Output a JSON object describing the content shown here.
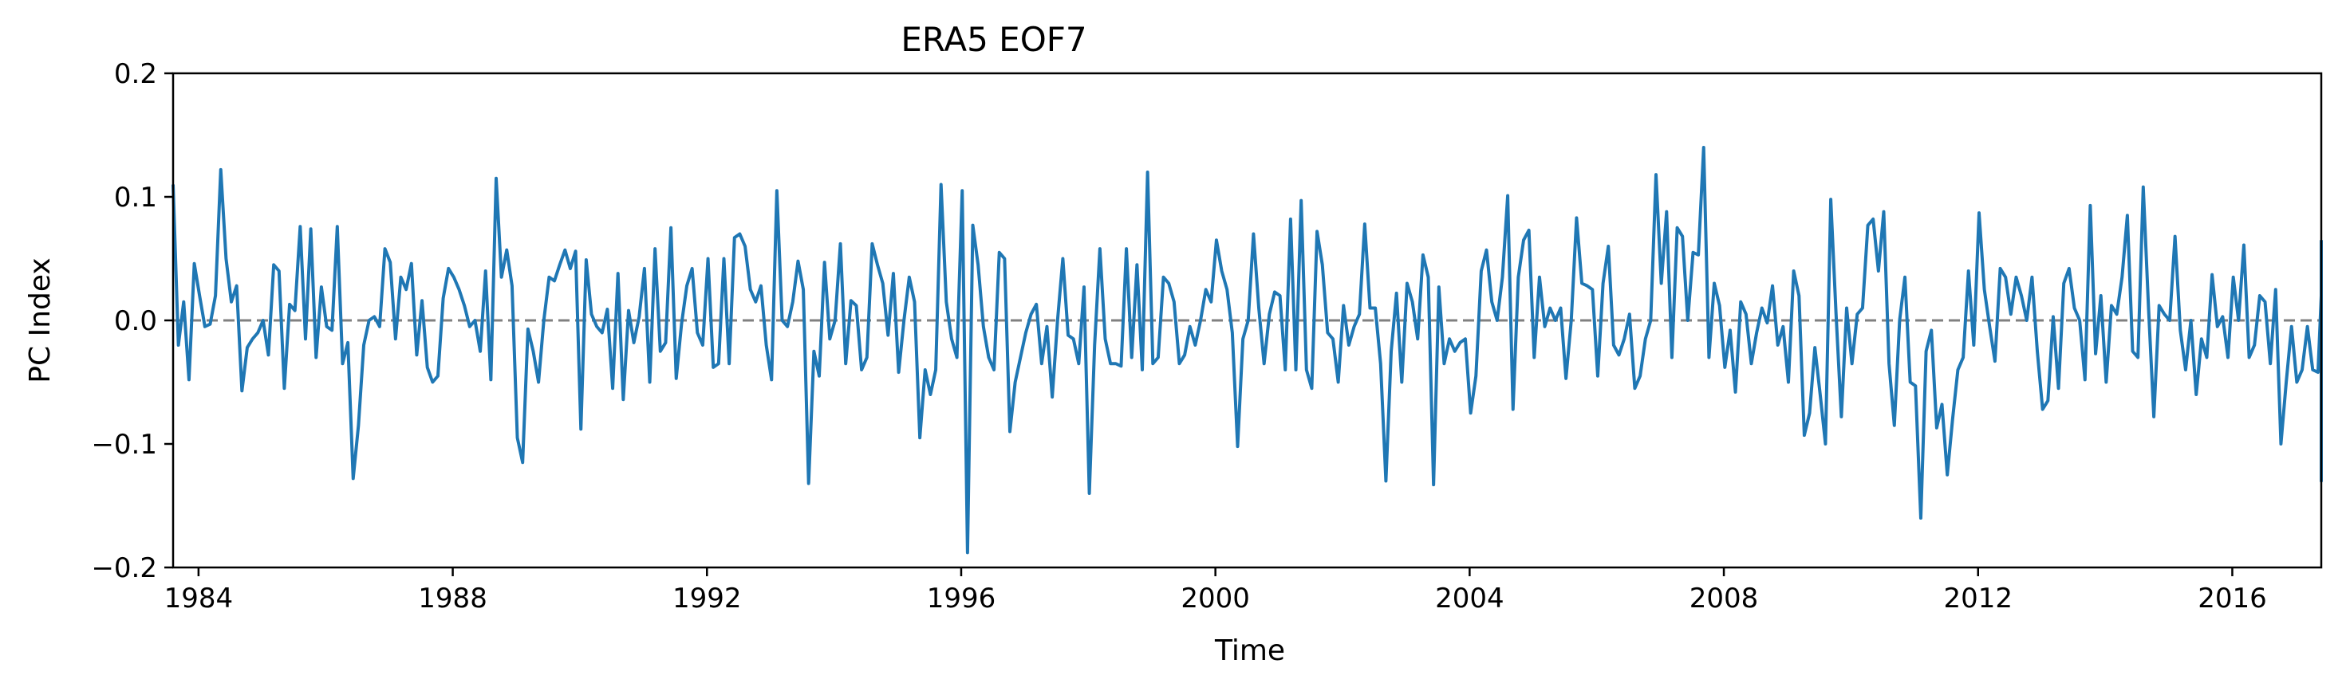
{
  "chart_data": {
    "type": "line",
    "title": "ERA5  EOF7",
    "xlabel": "Time",
    "ylabel": "PC Index",
    "xlim": [
      1983.6,
      2017.4
    ],
    "ylim": [
      -0.2,
      0.2
    ],
    "x_ticks": [
      1984,
      1988,
      1992,
      1996,
      2000,
      2004,
      2008,
      2012,
      2016
    ],
    "x_tick_labels": [
      "1984",
      "1988",
      "1992",
      "1996",
      "2000",
      "2004",
      "2008",
      "2012",
      "2016"
    ],
    "y_ticks": [
      -0.2,
      -0.1,
      0.0,
      0.1,
      0.2
    ],
    "y_tick_labels": [
      "−0.2",
      "−0.1",
      "0.0",
      "0.1",
      "0.2"
    ],
    "grid": false,
    "zero_line": {
      "value": 0.0,
      "style": "dashed",
      "color": "#808080"
    },
    "line_color": "#1f77b4",
    "series": [
      {
        "x_start": 1983.6,
        "x_step": 0.08333,
        "values": [
          0.11,
          -0.02,
          0.015,
          -0.048,
          0.046,
          0.02,
          -0.005,
          -0.003,
          0.02,
          0.122,
          0.05,
          0.015,
          0.028,
          -0.057,
          -0.022,
          -0.015,
          -0.01,
          0.0,
          -0.028,
          0.045,
          0.04,
          -0.055,
          0.013,
          0.008,
          0.076,
          -0.015,
          0.074,
          -0.03,
          0.027,
          -0.005,
          -0.008,
          0.076,
          -0.035,
          -0.018,
          -0.128,
          -0.085,
          -0.02,
          0.0,
          0.003,
          -0.005,
          0.058,
          0.047,
          -0.015,
          0.035,
          0.025,
          0.046,
          -0.028,
          0.016,
          -0.038,
          -0.05,
          -0.045,
          0.018,
          0.042,
          0.035,
          0.025,
          0.012,
          -0.005,
          0.0,
          -0.025,
          0.04,
          -0.048,
          0.115,
          0.035,
          0.057,
          0.028,
          -0.095,
          -0.115,
          -0.007,
          -0.025,
          -0.05,
          0.0,
          0.035,
          0.032,
          0.045,
          0.057,
          0.042,
          0.056,
          -0.088,
          0.049,
          0.005,
          -0.005,
          -0.01,
          0.009,
          -0.055,
          0.038,
          -0.064,
          0.008,
          -0.018,
          0.003,
          0.042,
          -0.05,
          0.058,
          -0.025,
          -0.018,
          0.075,
          -0.047,
          -0.003,
          0.028,
          0.042,
          -0.01,
          -0.02,
          0.05,
          -0.038,
          -0.035,
          0.05,
          -0.035,
          0.067,
          0.07,
          0.06,
          0.025,
          0.015,
          0.028,
          -0.02,
          -0.048,
          0.105,
          0.0,
          -0.005,
          0.015,
          0.048,
          0.025,
          -0.132,
          -0.025,
          -0.045,
          0.047,
          -0.015,
          0.0,
          0.062,
          -0.035,
          0.016,
          0.012,
          -0.04,
          -0.03,
          0.062,
          0.045,
          0.03,
          -0.012,
          0.038,
          -0.042,
          0.0,
          0.035,
          0.015,
          -0.095,
          -0.04,
          -0.06,
          -0.04,
          0.11,
          0.015,
          -0.015,
          -0.03,
          0.105,
          -0.188,
          0.077,
          0.045,
          -0.005,
          -0.03,
          -0.04,
          0.055,
          0.05,
          -0.09,
          -0.05,
          -0.03,
          -0.01,
          0.005,
          0.013,
          -0.035,
          -0.005,
          -0.062,
          0.0,
          0.05,
          -0.012,
          -0.015,
          -0.035,
          0.027,
          -0.14,
          -0.02,
          0.058,
          -0.015,
          -0.035,
          -0.035,
          -0.037,
          0.058,
          -0.03,
          0.045,
          -0.04,
          0.12,
          -0.035,
          -0.03,
          0.035,
          0.03,
          0.015,
          -0.035,
          -0.028,
          -0.005,
          -0.02,
          0.0,
          0.025,
          0.015,
          0.065,
          0.04,
          0.025,
          -0.01,
          -0.102,
          -0.015,
          0.0,
          0.07,
          0.01,
          -0.035,
          0.005,
          0.023,
          0.02,
          -0.04,
          0.082,
          -0.04,
          0.097,
          -0.04,
          -0.055,
          0.072,
          0.045,
          -0.01,
          -0.015,
          -0.05,
          0.012,
          -0.02,
          -0.005,
          0.005,
          0.078,
          0.01,
          0.01,
          -0.035,
          -0.13,
          -0.025,
          0.022,
          -0.05,
          0.03,
          0.015,
          -0.015,
          0.053,
          0.035,
          -0.133,
          0.027,
          -0.035,
          -0.015,
          -0.025,
          -0.018,
          -0.015,
          -0.075,
          -0.045,
          0.04,
          0.057,
          0.015,
          0.0,
          0.035,
          0.101,
          -0.072,
          0.035,
          0.065,
          0.073,
          -0.03,
          0.035,
          -0.005,
          0.01,
          0.0,
          0.01,
          -0.047,
          0.0,
          0.083,
          0.03,
          0.028,
          0.025,
          -0.045,
          0.03,
          0.06,
          -0.02,
          -0.028,
          -0.015,
          0.005,
          -0.055,
          -0.045,
          -0.015,
          0.0,
          0.118,
          0.03,
          0.088,
          -0.03,
          0.075,
          0.068,
          0.0,
          0.055,
          0.053,
          0.14,
          -0.03,
          0.03,
          0.012,
          -0.038,
          -0.008,
          -0.058,
          0.015,
          0.005,
          -0.035,
          -0.01,
          0.01,
          -0.002,
          0.028,
          -0.02,
          -0.005,
          -0.05,
          0.04,
          0.02,
          -0.093,
          -0.075,
          -0.022,
          -0.06,
          -0.1,
          0.098,
          0.005,
          -0.078,
          0.01,
          -0.035,
          0.005,
          0.01,
          0.077,
          0.082,
          0.04,
          0.088,
          -0.035,
          -0.085,
          0.0,
          0.035,
          -0.05,
          -0.053,
          -0.16,
          -0.025,
          -0.008,
          -0.087,
          -0.068,
          -0.125,
          -0.08,
          -0.04,
          -0.03,
          0.04,
          -0.02,
          0.087,
          0.025,
          -0.005,
          -0.033,
          0.042,
          0.035,
          0.005,
          0.035,
          0.02,
          0.0,
          0.035,
          -0.025,
          -0.072,
          -0.065,
          0.003,
          -0.055,
          0.03,
          0.042,
          0.01,
          0.0,
          -0.048,
          0.093,
          -0.027,
          0.02,
          -0.05,
          0.012,
          0.005,
          0.035,
          0.085,
          -0.025,
          -0.03,
          0.108,
          0.01,
          -0.078,
          0.012,
          0.005,
          0.0,
          0.068,
          -0.008,
          -0.04,
          0.0,
          -0.06,
          -0.015,
          -0.03,
          0.037,
          -0.005,
          0.003,
          -0.03,
          0.035,
          0.0,
          0.061,
          -0.03,
          -0.02,
          0.02,
          0.015,
          -0.035,
          0.025,
          -0.1,
          -0.05,
          -0.005,
          -0.05,
          -0.04,
          -0.005,
          -0.04,
          -0.042,
          0.02,
          -0.13,
          0.062,
          0.065
        ]
      }
    ]
  }
}
